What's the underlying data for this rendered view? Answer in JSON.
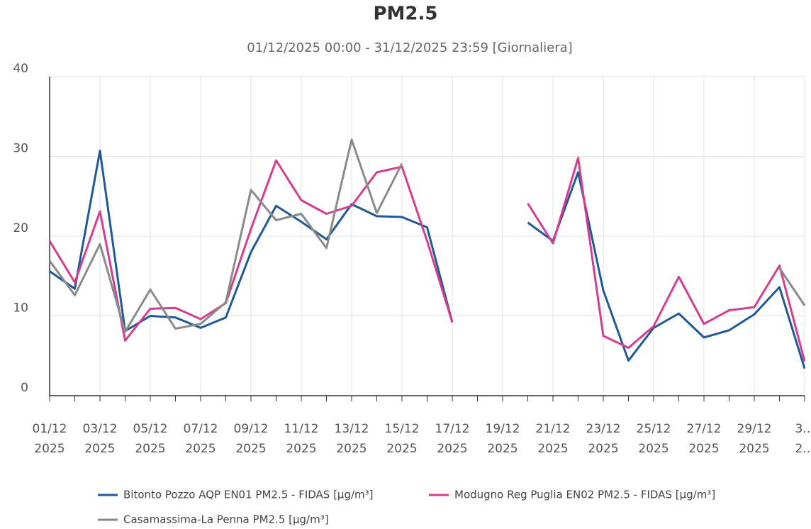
{
  "chart_data": {
    "type": "line",
    "title": "PM2.5",
    "subtitle": "01/12/2025 00:00 - 31/12/2025 23:59 [Giornaliera]",
    "categories": [
      [
        "01/12",
        "2025"
      ],
      null,
      [
        "03/12",
        "2025"
      ],
      null,
      [
        "05/12",
        "2025"
      ],
      null,
      [
        "07/12",
        "2025"
      ],
      null,
      [
        "09/12",
        "2025"
      ],
      null,
      [
        "11/12",
        "2025"
      ],
      null,
      [
        "13/12",
        "2025"
      ],
      null,
      [
        "15/12",
        "2025"
      ],
      null,
      [
        "17/12",
        "2025"
      ],
      null,
      [
        "19/12",
        "2025"
      ],
      null,
      [
        "21/12",
        "2025"
      ],
      null,
      [
        "23/12",
        "2025"
      ],
      null,
      [
        "25/12",
        "2025"
      ],
      null,
      [
        "27/12",
        "2025"
      ],
      null,
      [
        "29/12",
        "2025"
      ],
      null,
      [
        "3...",
        "2..."
      ]
    ],
    "ylim": [
      0,
      40
    ],
    "yticks": [
      0,
      10,
      20,
      30,
      40
    ],
    "grid": true,
    "series": [
      {
        "name": "Bitonto Pozzo AQP EN01 PM2.5 - FIDAS [µg/m³]",
        "color": "#1f5a96",
        "values": [
          15.6,
          13.4,
          30.7,
          8.1,
          10.0,
          9.8,
          8.5,
          9.8,
          18.0,
          23.8,
          21.8,
          19.6,
          24.0,
          22.5,
          22.4,
          21.1,
          9.2,
          null,
          null,
          21.7,
          19.4,
          28.0,
          13.2,
          4.4,
          8.5,
          10.3,
          7.3,
          8.2,
          10.2,
          13.6,
          3.4
        ]
      },
      {
        "name": "Modugno Reg Puglia EN02 PM2.5 - FIDAS [µg/m³]",
        "color": "#d63c8f",
        "values": [
          19.4,
          14.2,
          23.1,
          6.9,
          10.9,
          11.0,
          9.6,
          11.6,
          20.9,
          29.5,
          24.5,
          22.8,
          23.8,
          28.0,
          28.7,
          19.4,
          9.2,
          null,
          null,
          24.1,
          19.1,
          29.8,
          7.5,
          6.0,
          8.7,
          14.9,
          9.0,
          10.7,
          11.1,
          16.3,
          4.3
        ]
      },
      {
        "name": "Casamassima-La Penna PM2.5 [µg/m³]",
        "color": "#8a8a8a",
        "values": [
          16.9,
          12.6,
          19.0,
          8.0,
          13.3,
          8.4,
          9.0,
          11.7,
          25.8,
          22.0,
          22.8,
          18.5,
          32.1,
          22.9,
          29.1,
          null,
          null,
          null,
          null,
          null,
          null,
          null,
          null,
          null,
          null,
          null,
          null,
          null,
          null,
          16.0,
          11.3
        ]
      }
    ]
  }
}
